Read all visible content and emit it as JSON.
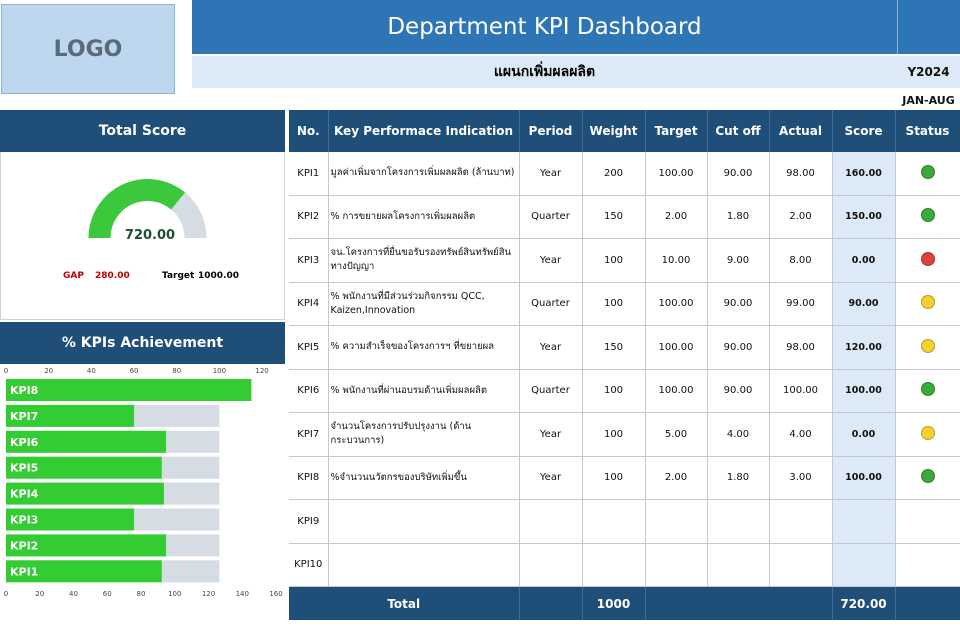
{
  "header": {
    "logo_text": "LOGO",
    "title": "Department KPI Dashboard",
    "subtitle": "แผนกเพิ่มผลผลิต",
    "year": "Y2024",
    "period": "JAN-AUG"
  },
  "total_score": {
    "heading": "Total Score",
    "value": "720.00",
    "gap_label": "GAP",
    "gap_value": "280.00",
    "target_label": "Target",
    "target_value": "1000.00",
    "fraction": 0.72,
    "fill_color": "#3cc83c",
    "track_color": "#d6dce4"
  },
  "achievement": {
    "heading": "% KPIs Achievement"
  },
  "chart_data": {
    "type": "bar",
    "orientation": "horizontal",
    "title": "% KPIs Achievement",
    "categories": [
      "KPI8",
      "KPI7",
      "KPI6",
      "KPI5",
      "KPI4",
      "KPI3",
      "KPI2",
      "KPI1"
    ],
    "series": [
      {
        "name": "Target",
        "values": [
          100,
          100,
          100,
          100,
          100,
          100,
          100,
          100
        ],
        "color": "#d6dce4"
      },
      {
        "name": "Achievement",
        "values": [
          115,
          60,
          75,
          73,
          74,
          60,
          75,
          73
        ],
        "color": "#33cc33"
      }
    ],
    "top_axis": {
      "ticks": [
        0,
        20,
        40,
        60,
        80,
        100,
        120
      ],
      "xlim": [
        0,
        127
      ]
    },
    "bottom_axis": {
      "ticks": [
        0,
        20,
        40,
        60,
        80,
        100,
        120,
        140,
        160
      ],
      "xlim": [
        0,
        160
      ]
    }
  },
  "table": {
    "columns": [
      "No.",
      "Key Performace Indication",
      "Period",
      "Weight",
      "Target",
      "Cut off",
      "Actual",
      "Score",
      "Status"
    ],
    "rows": [
      {
        "no": "KPI1",
        "name": "มูลค่าเพิ่มจากโครงการเพิ่มผลผลิต (ล้านบาท)",
        "period": "Year",
        "weight": "200",
        "target": "100.00",
        "cutoff": "90.00",
        "actual": "98.00",
        "score": "160.00",
        "status": "green"
      },
      {
        "no": "KPI2",
        "name": "% การขยายผลโครงการเพิ่มผลผลิต",
        "period": "Quarter",
        "weight": "150",
        "target": "2.00",
        "cutoff": "1.80",
        "actual": "2.00",
        "score": "150.00",
        "status": "green"
      },
      {
        "no": "KPI3",
        "name": "จน.โครงการที่ยื่นขอรับรองทรัพย์สินทรัพย์สินทางปัญญา",
        "period": "Year",
        "weight": "100",
        "target": "10.00",
        "cutoff": "9.00",
        "actual": "8.00",
        "score": "0.00",
        "status": "red"
      },
      {
        "no": "KPI4",
        "name": "% พนักงานที่มีส่วนร่วมกิจกรรม QCC, Kaizen,Innovation",
        "period": "Quarter",
        "weight": "100",
        "target": "100.00",
        "cutoff": "90.00",
        "actual": "99.00",
        "score": "90.00",
        "status": "yellow"
      },
      {
        "no": "KPI5",
        "name": "% ความสำเร็จของโครงการฯ ที่ขยายผล",
        "period": "Year",
        "weight": "150",
        "target": "100.00",
        "cutoff": "90.00",
        "actual": "98.00",
        "score": "120.00",
        "status": "yellow"
      },
      {
        "no": "KPI6",
        "name": "% พนักงานที่ผ่านอบรมด้านเพิ่มผลผลิต",
        "period": "Quarter",
        "weight": "100",
        "target": "100.00",
        "cutoff": "90.00",
        "actual": "100.00",
        "score": "100.00",
        "status": "green"
      },
      {
        "no": "KPI7",
        "name": "จำนวนโครงการปรับปรุงงาน (ด้านกระบวนการ)",
        "period": "Year",
        "weight": "100",
        "target": "5.00",
        "cutoff": "4.00",
        "actual": "4.00",
        "score": "0.00",
        "status": "yellow"
      },
      {
        "no": "KPI8",
        "name": "%จำนวนนวัตกรของบริษัทเพิ่มขึ้น",
        "period": "Year",
        "weight": "100",
        "target": "2.00",
        "cutoff": "1.80",
        "actual": "3.00",
        "score": "100.00",
        "status": "green"
      },
      {
        "no": "KPI9",
        "name": "",
        "period": "",
        "weight": "",
        "target": "",
        "cutoff": "",
        "actual": "",
        "score": "",
        "status": ""
      },
      {
        "no": "KPI10",
        "name": "",
        "period": "",
        "weight": "",
        "target": "",
        "cutoff": "",
        "actual": "",
        "score": "",
        "status": ""
      }
    ],
    "total": {
      "label": "Total",
      "weight": "1000",
      "score": "720.00"
    },
    "status_colors": {
      "green": "#3aaa3a",
      "yellow": "#f5d130",
      "red": "#e04040"
    }
  }
}
